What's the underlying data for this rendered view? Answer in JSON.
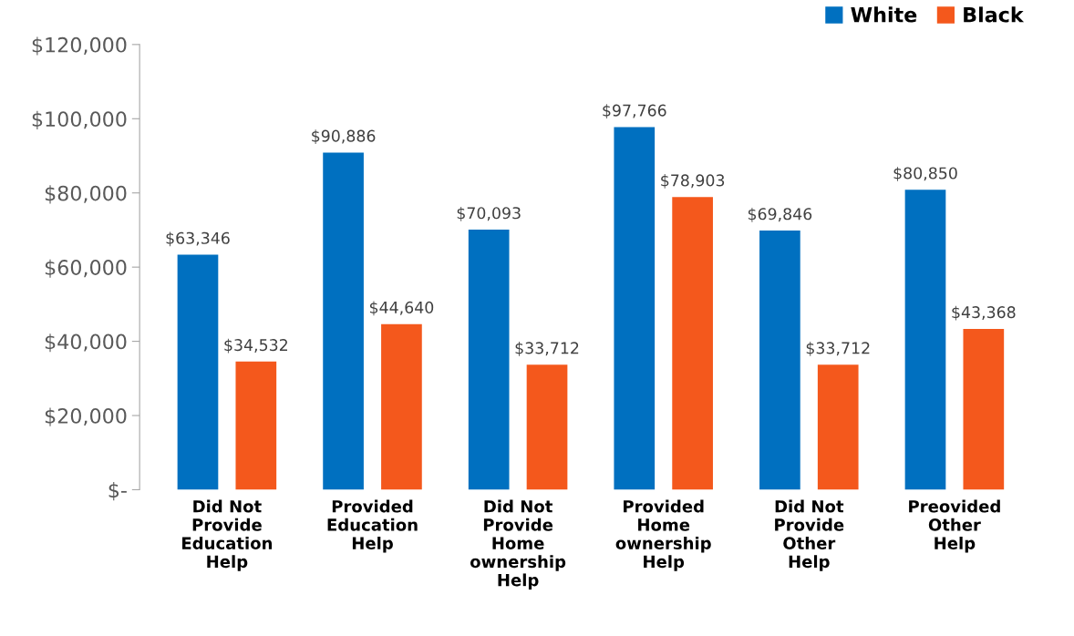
{
  "chart_data": {
    "type": "bar",
    "categories": [
      "Did Not\nProvide\nEducation\nHelp",
      "Provided\nEducation\nHelp",
      "Did Not\nProvide\nHome\nownership\nHelp",
      "Provided\nHome\nownership\nHelp",
      "Did Not\nProvide\nOther\nHelp",
      "Preovided\nOther\nHelp"
    ],
    "series": [
      {
        "name": "White",
        "color": "#0070c0",
        "values": [
          63346,
          90886,
          70093,
          97766,
          69846,
          80850
        ],
        "value_labels": [
          "$63,346",
          "$90,886",
          "$70,093",
          "$97,766",
          "$69,846",
          "$80,850"
        ]
      },
      {
        "name": "Black",
        "color": "#f4581c",
        "values": [
          34532,
          44640,
          33712,
          78903,
          33712,
          43368
        ],
        "value_labels": [
          "$34,532",
          "$44,640",
          "$33,712",
          "$78,903",
          "$33,712",
          "$43,368"
        ]
      }
    ],
    "ylim": [
      0,
      120000
    ],
    "yticks": [
      {
        "value": 0,
        "label": "$-"
      },
      {
        "value": 20000,
        "label": "$20,000"
      },
      {
        "value": 40000,
        "label": "$40,000"
      },
      {
        "value": 60000,
        "label": "$60,000"
      },
      {
        "value": 80000,
        "label": "$80,000"
      },
      {
        "value": 100000,
        "label": "$100,000"
      },
      {
        "value": 120000,
        "label": "$120,000"
      }
    ],
    "legend": "top right",
    "grid": false
  }
}
